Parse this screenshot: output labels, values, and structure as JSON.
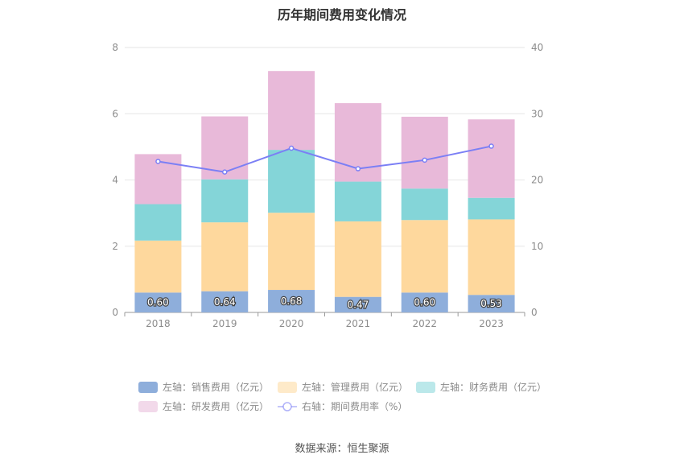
{
  "title": "历年期间费用变化情况",
  "source": "数据来源：恒生聚源",
  "chart_data": {
    "type": "bar",
    "stacked": true,
    "title": "历年期间费用变化情况",
    "categories": [
      "2018",
      "2019",
      "2020",
      "2021",
      "2022",
      "2023"
    ],
    "left_axis": {
      "min": 0,
      "max": 8,
      "ticks": [
        0,
        2,
        4,
        6,
        8
      ]
    },
    "right_axis": {
      "min": 0,
      "max": 40,
      "ticks": [
        0,
        10,
        20,
        30,
        40
      ]
    },
    "grid": true,
    "legend_position": "bottom",
    "series": [
      {
        "name": "左轴：销售费用（亿元）",
        "type": "bar",
        "axis": "left",
        "color": "#8eaedb",
        "values": [
          0.6,
          0.64,
          0.68,
          0.47,
          0.6,
          0.53
        ],
        "labels": [
          "0.60",
          "0.64",
          "0.68",
          "0.47",
          "0.60",
          "0.53"
        ]
      },
      {
        "name": "左轴：管理费用（亿元）",
        "type": "bar",
        "axis": "left",
        "color": "#fed89d",
        "values": [
          1.57,
          2.08,
          2.33,
          2.28,
          2.19,
          2.28
        ]
      },
      {
        "name": "左轴：财务费用（亿元）",
        "type": "bar",
        "axis": "left",
        "color": "#84d5d8",
        "values": [
          1.1,
          1.3,
          1.9,
          1.2,
          0.95,
          0.65
        ]
      },
      {
        "name": "左轴：研发费用（亿元）",
        "type": "bar",
        "axis": "left",
        "color": "#e8b9d9",
        "values": [
          1.51,
          1.9,
          2.38,
          2.37,
          2.17,
          2.37
        ]
      },
      {
        "name": "右轴：期间费用率（%）",
        "type": "line",
        "axis": "right",
        "color": "#7b7ff5",
        "values": [
          22.8,
          21.2,
          24.8,
          21.7,
          23.0,
          25.1
        ]
      }
    ]
  }
}
